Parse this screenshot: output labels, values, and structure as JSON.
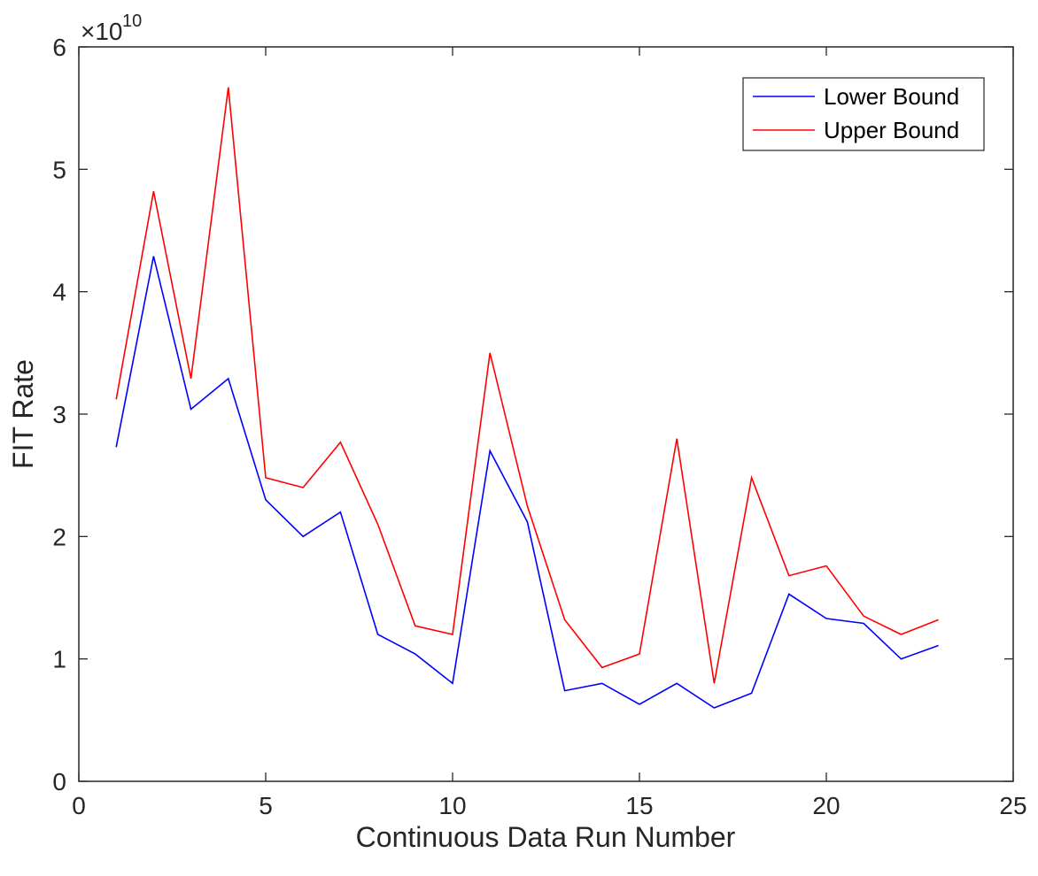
{
  "chart_data": {
    "type": "line",
    "xlabel": "Continuous Data Run Number",
    "ylabel": "FIT Rate",
    "xlim": [
      0,
      25
    ],
    "ylim": [
      0,
      60000000000.0
    ],
    "xticks": [
      0,
      5,
      10,
      15,
      20,
      25
    ],
    "yticks": [
      0,
      1,
      2,
      3,
      4,
      5,
      6
    ],
    "y_multiplier": {
      "prefix": "×10",
      "exponent": "10"
    },
    "grid": false,
    "legend_position": "top-right",
    "x": [
      1,
      2,
      3,
      4,
      5,
      6,
      7,
      8,
      9,
      10,
      11,
      12,
      13,
      14,
      15,
      16,
      17,
      18,
      19,
      20,
      21,
      22,
      23
    ],
    "series": [
      {
        "name": "Lower Bound",
        "color": "#0000ff",
        "values": [
          27300000000.0,
          42900000000.0,
          30400000000.0,
          32900000000.0,
          23000000000.0,
          20000000000.0,
          22000000000.0,
          12000000000.0,
          10400000000.0,
          8000000000.0,
          27000000000.0,
          21200000000.0,
          7400000000.0,
          8000000000.0,
          6300000000.0,
          8000000000.0,
          6000000000.0,
          7200000000.0,
          15300000000.0,
          13300000000.0,
          12900000000.0,
          10000000000.0,
          11100000000.0
        ]
      },
      {
        "name": "Upper Bound",
        "color": "#ff0000",
        "values": [
          31200000000.0,
          48200000000.0,
          32900000000.0,
          56700000000.0,
          24800000000.0,
          24000000000.0,
          27700000000.0,
          21000000000.0,
          12700000000.0,
          12000000000.0,
          35000000000.0,
          22500000000.0,
          13200000000.0,
          9300000000.0,
          10400000000.0,
          28000000000.0,
          8000000000.0,
          24800000000.0,
          16800000000.0,
          17600000000.0,
          13500000000.0,
          12000000000.0,
          13200000000.0
        ]
      }
    ]
  }
}
